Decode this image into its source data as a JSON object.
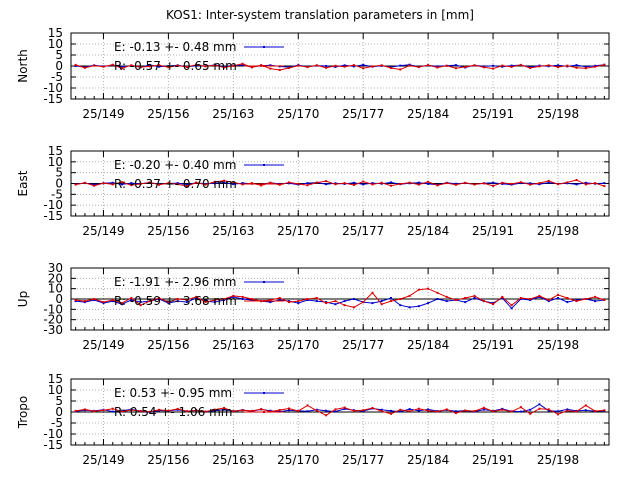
{
  "page": {
    "title": "KOS1: Inter-system translation parameters in [mm]"
  },
  "colors": {
    "E": "#0000cc",
    "R": "#dd0000",
    "grid": "#a0a0a0",
    "axis": "#000000"
  },
  "chart_data": [
    {
      "type": "line",
      "title": "KOS1: Inter-system translation parameters in [mm]",
      "ylabel": "North",
      "ylim": [
        -15,
        15
      ],
      "yticks": [
        15,
        10,
        5,
        0,
        -5,
        -10,
        -15
      ],
      "xlim": [
        145.5,
        203.5
      ],
      "xticks": [
        149,
        156,
        163,
        170,
        177,
        184,
        191,
        198
      ],
      "xtick_labels": [
        "25/149",
        "25/156",
        "25/163",
        "25/170",
        "25/177",
        "25/184",
        "25/191",
        "25/198"
      ],
      "grid": true,
      "legend": "top-left",
      "x": [
        146,
        147,
        148,
        149,
        150,
        151,
        152,
        153,
        154,
        155,
        156,
        157,
        158,
        159,
        160,
        161,
        162,
        163,
        164,
        165,
        166,
        167,
        168,
        169,
        170,
        171,
        172,
        173,
        174,
        175,
        176,
        177,
        178,
        179,
        180,
        181,
        182,
        183,
        184,
        185,
        186,
        187,
        188,
        189,
        190,
        191,
        192,
        193,
        194,
        195,
        196,
        197,
        198,
        199,
        200,
        201,
        202,
        203
      ],
      "series": [
        {
          "name": "E",
          "label": "E:  -0.13 +- 0.48 mm",
          "color": "#0000cc",
          "values": [
            0,
            -0.5,
            0.3,
            -0.2,
            0.4,
            -0.3,
            0.2,
            -0.6,
            0.5,
            -0.3,
            0,
            0.3,
            -0.4,
            0.2,
            -0.1,
            0.5,
            -0.3,
            0.2,
            0.4,
            -0.5,
            0.1,
            0.3,
            -0.2,
            -0.6,
            0.4,
            -0.3,
            0.2,
            0,
            -0.4,
            0.3,
            -0.2,
            0.5,
            -0.3,
            0.1,
            -0.5,
            0.2,
            0.6,
            -0.4,
            0.3,
            -0.2,
            0.1,
            0.4,
            -0.7,
            0.3,
            -0.2,
            0.1,
            -0.3,
            0.2,
            0.4,
            -0.5,
            0.2,
            -0.1,
            0.3,
            -0.2,
            0.4,
            -0.3,
            0.1,
            0.6
          ]
        },
        {
          "name": "R",
          "label": "R:  -0.57 +- 0.65 mm",
          "color": "#dd0000",
          "values": [
            0.5,
            -0.8,
            0.2,
            -0.3,
            0.6,
            -1,
            0.3,
            -0.5,
            -0.2,
            0.4,
            -0.6,
            0.2,
            -0.4,
            0.6,
            -0.2,
            0.3,
            -0.7,
            0.1,
            1,
            -0.6,
            0.4,
            -1.2,
            -1.8,
            -0.9,
            0.2,
            -0.5,
            0.3,
            -0.8,
            0.1,
            -0.3,
            0.4,
            -1,
            -0.2,
            0.3,
            -0.9,
            -1.6,
            0.2,
            -0.5,
            0.4,
            -0.7,
            0.1,
            -1,
            -0.4,
            0.3,
            -0.6,
            -1.2,
            0.2,
            -0.4,
            0.5,
            -0.9,
            -0.2,
            0.3,
            -0.5,
            0.2,
            -0.8,
            -1,
            -0.3,
            0.5
          ]
        }
      ]
    },
    {
      "type": "line",
      "ylabel": "East",
      "ylim": [
        -15,
        15
      ],
      "yticks": [
        15,
        10,
        5,
        0,
        -5,
        -10,
        -15
      ],
      "xlim": [
        145.5,
        203.5
      ],
      "xticks": [
        149,
        156,
        163,
        170,
        177,
        184,
        191,
        198
      ],
      "xtick_labels": [
        "25/149",
        "25/156",
        "25/163",
        "25/170",
        "25/177",
        "25/184",
        "25/191",
        "25/198"
      ],
      "grid": true,
      "legend": "top-left",
      "x": [
        146,
        147,
        148,
        149,
        150,
        151,
        152,
        153,
        154,
        155,
        156,
        157,
        158,
        159,
        160,
        161,
        162,
        163,
        164,
        165,
        166,
        167,
        168,
        169,
        170,
        171,
        172,
        173,
        174,
        175,
        176,
        177,
        178,
        179,
        180,
        181,
        182,
        183,
        184,
        185,
        186,
        187,
        188,
        189,
        190,
        191,
        192,
        193,
        194,
        195,
        196,
        197,
        198,
        199,
        200,
        201,
        202,
        203
      ],
      "series": [
        {
          "name": "E",
          "label": "E:  -0.20 +- 0.40 mm",
          "color": "#0000cc",
          "values": [
            -0.3,
            0.2,
            -0.5,
            0.1,
            0.3,
            -0.4,
            0.2,
            -0.1,
            0.4,
            -0.3,
            0,
            0.2,
            -0.5,
            0.3,
            -0.2,
            0.1,
            0.4,
            -0.3,
            0.2,
            -0.1,
            -0.4,
            0.3,
            -0.2,
            0.1,
            -0.5,
            0.2,
            0.4,
            -0.3,
            0.1,
            -0.2,
            0.3,
            -0.4,
            0.2,
            -0.1,
            0.5,
            -0.3,
            0.1,
            0.4,
            -0.2,
            -0.6,
            0.3,
            -0.1,
            0.2,
            -0.4,
            0.1,
            0.3,
            -0.2,
            -0.5,
            0.2,
            0.1,
            -0.3,
            0.4,
            -0.2,
            0.1,
            -0.4,
            0.3,
            -0.1,
            0.2
          ]
        },
        {
          "name": "R",
          "label": "R:  -0.37 +- 0.70 mm",
          "color": "#dd0000",
          "values": [
            -0.5,
            0.3,
            -1,
            0.2,
            -0.4,
            0.6,
            -0.8,
            -0.2,
            0.5,
            -0.6,
            0.2,
            -0.3,
            -1.2,
            0.4,
            -0.5,
            0.8,
            1.3,
            0.6,
            -0.4,
            0.2,
            -0.9,
            0.3,
            -0.6,
            0.5,
            -0.2,
            -0.8,
            0.4,
            1.1,
            -0.3,
            0.2,
            -0.7,
            0.9,
            -0.4,
            0.3,
            -1,
            -0.2,
            0.4,
            -0.5,
            0.8,
            -0.9,
            0.2,
            -0.6,
            0.3,
            -0.4,
            0.1,
            -1.1,
            0.3,
            -0.2,
            0.6,
            -0.5,
            0.2,
            1.2,
            -0.3,
            0.5,
            1.6,
            -0.4,
            0.2,
            -1.2
          ]
        }
      ]
    },
    {
      "type": "line",
      "ylabel": "Up",
      "ylim": [
        -30,
        30
      ],
      "yticks": [
        30,
        20,
        10,
        0,
        -10,
        -20,
        -30
      ],
      "xlim": [
        145.5,
        203.5
      ],
      "xticks": [
        149,
        156,
        163,
        170,
        177,
        184,
        191,
        198
      ],
      "xtick_labels": [
        "25/149",
        "25/156",
        "25/163",
        "25/170",
        "25/177",
        "25/184",
        "25/191",
        "25/198"
      ],
      "grid": true,
      "legend": "top-left",
      "x": [
        146,
        147,
        148,
        149,
        150,
        151,
        152,
        153,
        154,
        155,
        156,
        157,
        158,
        159,
        160,
        161,
        162,
        163,
        164,
        165,
        166,
        167,
        168,
        169,
        170,
        171,
        172,
        173,
        174,
        175,
        176,
        177,
        178,
        179,
        180,
        181,
        182,
        183,
        184,
        185,
        186,
        187,
        188,
        189,
        190,
        191,
        192,
        193,
        194,
        195,
        196,
        197,
        198,
        199,
        200,
        201,
        202,
        203
      ],
      "series": [
        {
          "name": "E",
          "label": "E:  -1.91 +- 2.96 mm",
          "color": "#0000cc",
          "values": [
            -2,
            -3,
            -1,
            -4,
            -2,
            -5,
            -1,
            -3,
            -2,
            0,
            -4,
            -2,
            -3,
            1,
            -2,
            -3,
            -1,
            2,
            0,
            -1,
            -2,
            -3,
            -1,
            -2,
            -4,
            -1,
            -2,
            -3,
            -5,
            -2,
            0,
            -3,
            -4,
            -2,
            1,
            -6,
            -8,
            -7,
            -4,
            0,
            -2,
            -1,
            -3,
            1,
            -2,
            -4,
            1,
            -9,
            0,
            -1,
            2,
            -2,
            1,
            -3,
            -1,
            0,
            -2,
            -1
          ]
        },
        {
          "name": "R",
          "label": "R:  -0.59 +- 3.68 mm",
          "color": "#dd0000",
          "values": [
            -1,
            -2,
            0,
            -3,
            -1,
            -4,
            1,
            -6,
            -2,
            1,
            -3,
            0,
            -1,
            2,
            -3,
            -1,
            0,
            3,
            2,
            0,
            -2,
            -1,
            1,
            -3,
            -2,
            0,
            1,
            -4,
            -2,
            -6,
            -8,
            -3,
            6,
            -5,
            -2,
            0,
            3,
            9,
            10,
            6,
            2,
            -1,
            1,
            3,
            -2,
            -5,
            2,
            -6,
            1,
            0,
            3,
            -1,
            4,
            1,
            -2,
            0,
            2,
            -1
          ]
        }
      ]
    },
    {
      "type": "line",
      "ylabel": "Tropo",
      "ylim": [
        -15,
        15
      ],
      "yticks": [
        15,
        10,
        5,
        0,
        -5,
        -10,
        -15
      ],
      "xlim": [
        145.5,
        203.5
      ],
      "xticks": [
        149,
        156,
        163,
        170,
        177,
        184,
        191,
        198
      ],
      "xtick_labels": [
        "25/149",
        "25/156",
        "25/163",
        "25/170",
        "25/177",
        "25/184",
        "25/191",
        "25/198"
      ],
      "grid": true,
      "legend": "top-left",
      "x": [
        146,
        147,
        148,
        149,
        150,
        151,
        152,
        153,
        154,
        155,
        156,
        157,
        158,
        159,
        160,
        161,
        162,
        163,
        164,
        165,
        166,
        167,
        168,
        169,
        170,
        171,
        172,
        173,
        174,
        175,
        176,
        177,
        178,
        179,
        180,
        181,
        182,
        183,
        184,
        185,
        186,
        187,
        188,
        189,
        190,
        191,
        192,
        193,
        194,
        195,
        196,
        197,
        198,
        199,
        200,
        201,
        202,
        203
      ],
      "series": [
        {
          "name": "E",
          "label": "E:   0.53 +- 0.95 mm",
          "color": "#0000cc",
          "values": [
            0.3,
            0.8,
            0.5,
            1,
            0.2,
            0.6,
            1.2,
            0.4,
            -0.2,
            0.7,
            0.5,
            1,
            0.3,
            0.8,
            0.2,
            0.6,
            1.1,
            0.4,
            0.9,
            0.3,
            1.2,
            0.6,
            0.2,
            0.8,
            0.5,
            0.3,
            1,
            0.6,
            0.2,
            1.4,
            0.8,
            0.4,
            1.6,
            1,
            0.5,
            0.2,
            1.3,
            0.6,
            1.2,
            0.4,
            0.9,
            0.3,
            0.7,
            0.2,
            1.1,
            0.5,
            1.4,
            0.3,
            0.2,
            1,
            3.5,
            0.6,
            0.3,
            1.2,
            0.5,
            0.8,
            0.3,
            0.6
          ]
        },
        {
          "name": "R",
          "label": "R:   0.54 +- 1.06 mm",
          "color": "#dd0000",
          "values": [
            0.5,
            1.2,
            0.3,
            0.8,
            1.5,
            0.2,
            0.9,
            0.4,
            0.1,
            1,
            0.6,
            1.4,
            0.3,
            0.7,
            0.2,
            1.1,
            1.8,
            0.3,
            0.8,
            0.5,
            1.3,
            0.2,
            0.9,
            1.6,
            0.4,
            3,
            0.6,
            -1.5,
            1.2,
            2,
            0.5,
            0.8,
            1.8,
            0.4,
            -0.8,
            1,
            0.3,
            1.5,
            0.6,
            0.2,
            1.2,
            -0.5,
            0.7,
            0.4,
            1.9,
            0.3,
            1,
            0.2,
            2.2,
            -0.8,
            1.5,
            1.2,
            -1,
            0.6,
            0.2,
            3,
            0.4,
            0.8
          ]
        }
      ]
    }
  ]
}
